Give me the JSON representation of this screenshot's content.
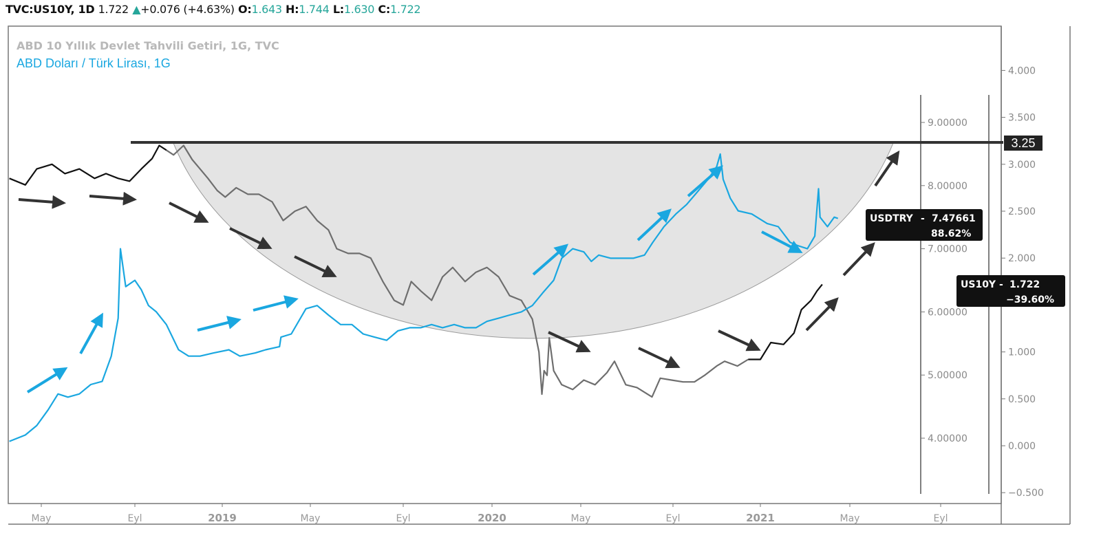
{
  "header": {
    "symbol": "TVC:US10Y, 1D",
    "last": "1.722",
    "arrow": "▲",
    "change": "+0.076 (+4.63%)",
    "o_label": "O:",
    "o": "1.643",
    "h_label": "H:",
    "h": "1.744",
    "l_label": "L:",
    "l": "1.630",
    "c_label": "C:",
    "c": "1.722"
  },
  "colors": {
    "us10y": "#111111",
    "us10y_faded": "#6e6e6e",
    "usdtry": "#1aa7e0",
    "arrow_dark": "#333333",
    "bowl_fill": "#e4e4e4",
    "resistance": "#333333",
    "up_color": "#26a69a"
  },
  "chart_data": {
    "type": "line",
    "legend": [
      "ABD 10 Yıllık Devlet Tahvili Getiri, 1G, TVC",
      "ABD Doları / Türk Lirası, 1G"
    ],
    "x_ticks": [
      "May",
      "Eyl",
      "2019",
      "May",
      "Eyl",
      "2020",
      "May",
      "Eyl",
      "2021",
      "May",
      "Eyl"
    ],
    "y_axis_us10y": [
      "4.000",
      "3.500",
      "3.000",
      "2.500",
      "2.000",
      "1.500",
      "1.000",
      "0.500",
      "0.000",
      "−0.500"
    ],
    "y_axis_usdtry": [
      "9.00000",
      "8.00000",
      "7.00000",
      "6.00000",
      "5.00000",
      "4.00000"
    ],
    "resistance_level": "3.25",
    "label_usdtry": {
      "name": "USDTRY",
      "value": "7.47661",
      "pct": "88.62%"
    },
    "label_us10y": {
      "name": "US10Y",
      "value": "1.722",
      "pct": "−39.60%"
    },
    "series": [
      {
        "name": "US10Y",
        "x": [
          "2018-03-20",
          "2018-04-10",
          "2018-04-25",
          "2018-05-15",
          "2018-06-01",
          "2018-06-20",
          "2018-07-10",
          "2018-07-25",
          "2018-08-10",
          "2018-08-25",
          "2018-09-10",
          "2018-09-25",
          "2018-10-05",
          "2018-10-15",
          "2018-10-25",
          "2018-11-08",
          "2018-11-20",
          "2018-12-01",
          "2018-12-12",
          "2018-12-25",
          "2019-01-05",
          "2019-01-20",
          "2019-02-05",
          "2019-02-20",
          "2019-03-10",
          "2019-03-25",
          "2019-04-10",
          "2019-04-25",
          "2019-05-10",
          "2019-05-25",
          "2019-06-05",
          "2019-06-20",
          "2019-07-05",
          "2019-07-20",
          "2019-08-05",
          "2019-08-20",
          "2019-09-01",
          "2019-09-12",
          "2019-09-25",
          "2019-10-10",
          "2019-10-25",
          "2019-11-08",
          "2019-11-25",
          "2019-12-10",
          "2019-12-25",
          "2020-01-10",
          "2020-01-25",
          "2020-02-10",
          "2020-02-25",
          "2020-03-05",
          "2020-03-09",
          "2020-03-12",
          "2020-03-16",
          "2020-03-19",
          "2020-03-25",
          "2020-04-05",
          "2020-04-20",
          "2020-05-05",
          "2020-05-20",
          "2020-06-05",
          "2020-06-15",
          "2020-06-30",
          "2020-07-15",
          "2020-08-04",
          "2020-08-15",
          "2020-08-30",
          "2020-09-15",
          "2020-10-01",
          "2020-10-15",
          "2020-11-01",
          "2020-11-12",
          "2020-11-30",
          "2020-12-15",
          "2021-01-01",
          "2021-01-15",
          "2021-02-01",
          "2021-02-15",
          "2021-02-25",
          "2021-03-10",
          "2021-03-18",
          "2021-03-25"
        ],
        "y": [
          2.85,
          2.78,
          2.95,
          3.0,
          2.9,
          2.95,
          2.85,
          2.9,
          2.85,
          2.82,
          2.95,
          3.06,
          3.2,
          3.15,
          3.1,
          3.2,
          3.05,
          2.95,
          2.85,
          2.72,
          2.65,
          2.75,
          2.68,
          2.68,
          2.6,
          2.4,
          2.5,
          2.55,
          2.4,
          2.3,
          2.1,
          2.05,
          2.05,
          2.0,
          1.75,
          1.55,
          1.5,
          1.75,
          1.65,
          1.55,
          1.8,
          1.9,
          1.75,
          1.85,
          1.9,
          1.8,
          1.6,
          1.55,
          1.35,
          1.0,
          0.55,
          0.8,
          0.75,
          1.15,
          0.8,
          0.65,
          0.6,
          0.7,
          0.65,
          0.78,
          0.9,
          0.65,
          0.62,
          0.52,
          0.72,
          0.7,
          0.68,
          0.68,
          0.75,
          0.85,
          0.9,
          0.85,
          0.92,
          0.92,
          1.1,
          1.08,
          1.2,
          1.45,
          1.55,
          1.65,
          1.72
        ]
      },
      {
        "name": "USDTRY",
        "x": [
          "2018-03-20",
          "2018-04-10",
          "2018-04-25",
          "2018-05-10",
          "2018-05-23",
          "2018-06-05",
          "2018-06-20",
          "2018-07-05",
          "2018-07-20",
          "2018-08-01",
          "2018-08-10",
          "2018-08-13",
          "2018-08-20",
          "2018-09-01",
          "2018-09-10",
          "2018-09-20",
          "2018-10-01",
          "2018-10-15",
          "2018-11-01",
          "2018-11-15",
          "2018-12-01",
          "2018-12-20",
          "2019-01-10",
          "2019-01-25",
          "2019-02-15",
          "2019-03-01",
          "2019-03-20",
          "2019-03-22",
          "2019-04-05",
          "2019-04-25",
          "2019-05-10",
          "2019-05-25",
          "2019-06-10",
          "2019-06-25",
          "2019-07-10",
          "2019-07-25",
          "2019-08-10",
          "2019-08-25",
          "2019-09-10",
          "2019-09-25",
          "2019-10-10",
          "2019-10-25",
          "2019-11-10",
          "2019-11-25",
          "2019-12-10",
          "2019-12-25",
          "2020-01-10",
          "2020-01-25",
          "2020-02-10",
          "2020-02-25",
          "2020-03-10",
          "2020-03-25",
          "2020-04-05",
          "2020-04-20",
          "2020-05-05",
          "2020-05-15",
          "2020-05-25",
          "2020-06-10",
          "2020-06-25",
          "2020-07-10",
          "2020-07-25",
          "2020-08-05",
          "2020-08-20",
          "2020-09-05",
          "2020-09-20",
          "2020-10-05",
          "2020-10-20",
          "2020-11-01",
          "2020-11-06",
          "2020-11-10",
          "2020-11-20",
          "2020-12-01",
          "2020-12-20",
          "2021-01-10",
          "2021-01-25",
          "2021-02-10",
          "2021-02-20",
          "2021-03-05",
          "2021-03-15",
          "2021-03-20",
          "2021-03-22",
          "2021-04-01",
          "2021-04-10",
          "2021-04-15"
        ],
        "y": [
          3.95,
          4.05,
          4.2,
          4.45,
          4.7,
          4.65,
          4.7,
          4.85,
          4.9,
          5.3,
          5.9,
          7.0,
          6.4,
          6.5,
          6.35,
          6.1,
          6.0,
          5.8,
          5.4,
          5.3,
          5.3,
          5.35,
          5.4,
          5.3,
          5.35,
          5.4,
          5.45,
          5.6,
          5.65,
          6.05,
          6.1,
          5.95,
          5.8,
          5.8,
          5.65,
          5.6,
          5.55,
          5.7,
          5.75,
          5.75,
          5.8,
          5.75,
          5.8,
          5.75,
          5.75,
          5.85,
          5.9,
          5.95,
          6.0,
          6.1,
          6.3,
          6.5,
          6.85,
          7.0,
          6.95,
          6.8,
          6.9,
          6.85,
          6.85,
          6.85,
          6.9,
          7.1,
          7.35,
          7.55,
          7.7,
          7.9,
          8.1,
          8.3,
          8.5,
          8.1,
          7.8,
          7.6,
          7.55,
          7.4,
          7.35,
          7.1,
          7.05,
          7.0,
          7.2,
          7.95,
          7.5,
          7.35,
          7.5,
          7.48
        ]
      }
    ],
    "annotations": [
      "dark arrows trace the falling yield; blue arrows trace the rising USDTRY",
      "horizontal resistance line at 3.25",
      "grey rounded-bottom shading (cup) under the resistance line"
    ]
  }
}
